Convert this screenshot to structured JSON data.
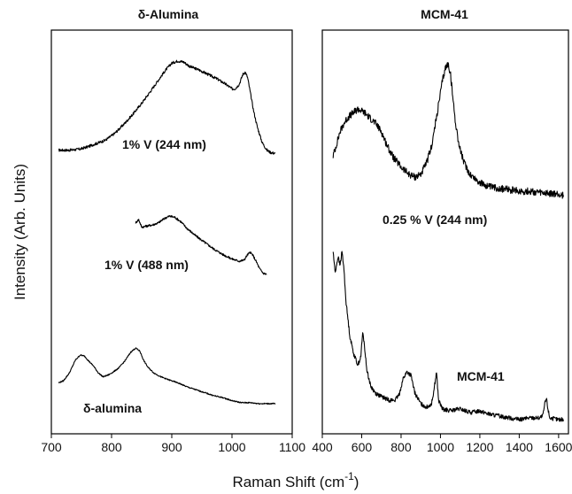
{
  "chart_data": {
    "type": "line",
    "ylabel": "Intensity (Arb. Units)",
    "xlabel_main": "Raman Shift (cm",
    "xlabel_sup": "-1",
    "xlabel_end": ")",
    "panels": [
      {
        "title": "δ-Alumina",
        "xlim": [
          700,
          1100
        ],
        "xticks": [
          700,
          800,
          900,
          1000,
          1100
        ],
        "series": [
          {
            "name": "1% V (244 nm)",
            "noise": 0.012,
            "points": [
              [
                712,
                0.13
              ],
              [
                730,
                0.13
              ],
              [
                748,
                0.14
              ],
              [
                760,
                0.16
              ],
              [
                775,
                0.19
              ],
              [
                790,
                0.22
              ],
              [
                805,
                0.28
              ],
              [
                820,
                0.36
              ],
              [
                835,
                0.45
              ],
              [
                850,
                0.55
              ],
              [
                865,
                0.66
              ],
              [
                878,
                0.76
              ],
              [
                890,
                0.85
              ],
              [
                900,
                0.91
              ],
              [
                910,
                0.93
              ],
              [
                920,
                0.92
              ],
              [
                930,
                0.88
              ],
              [
                945,
                0.85
              ],
              [
                960,
                0.81
              ],
              [
                975,
                0.77
              ],
              [
                990,
                0.72
              ],
              [
                1000,
                0.68
              ],
              [
                1005,
                0.68
              ],
              [
                1012,
                0.72
              ],
              [
                1018,
                0.81
              ],
              [
                1022,
                0.83
              ],
              [
                1026,
                0.78
              ],
              [
                1030,
                0.66
              ],
              [
                1036,
                0.48
              ],
              [
                1042,
                0.34
              ],
              [
                1050,
                0.2
              ],
              [
                1058,
                0.13
              ],
              [
                1064,
                0.11
              ],
              [
                1072,
                0.1
              ]
            ]
          },
          {
            "name": "1% V (488 nm)",
            "noise": 0.01,
            "points": [
              [
                840,
                0.6
              ],
              [
                845,
                0.63
              ],
              [
                850,
                0.56
              ],
              [
                858,
                0.57
              ],
              [
                868,
                0.58
              ],
              [
                878,
                0.6
              ],
              [
                888,
                0.64
              ],
              [
                896,
                0.66
              ],
              [
                905,
                0.65
              ],
              [
                915,
                0.61
              ],
              [
                925,
                0.55
              ],
              [
                940,
                0.48
              ],
              [
                955,
                0.42
              ],
              [
                970,
                0.36
              ],
              [
                985,
                0.31
              ],
              [
                1000,
                0.27
              ],
              [
                1012,
                0.25
              ],
              [
                1020,
                0.26
              ],
              [
                1026,
                0.31
              ],
              [
                1030,
                0.33
              ],
              [
                1034,
                0.31
              ],
              [
                1040,
                0.25
              ],
              [
                1046,
                0.18
              ],
              [
                1052,
                0.14
              ],
              [
                1058,
                0.13
              ]
            ]
          },
          {
            "name": "δ-alumina",
            "noise": 0.006,
            "points": [
              [
                712,
                0.3
              ],
              [
                720,
                0.32
              ],
              [
                730,
                0.4
              ],
              [
                740,
                0.53
              ],
              [
                748,
                0.58
              ],
              [
                755,
                0.57
              ],
              [
                762,
                0.52
              ],
              [
                770,
                0.47
              ],
              [
                778,
                0.4
              ],
              [
                786,
                0.36
              ],
              [
                795,
                0.38
              ],
              [
                803,
                0.41
              ],
              [
                812,
                0.45
              ],
              [
                822,
                0.52
              ],
              [
                832,
                0.61
              ],
              [
                840,
                0.65
              ],
              [
                847,
                0.62
              ],
              [
                853,
                0.53
              ],
              [
                860,
                0.46
              ],
              [
                870,
                0.4
              ],
              [
                882,
                0.36
              ],
              [
                895,
                0.33
              ],
              [
                910,
                0.3
              ],
              [
                925,
                0.26
              ],
              [
                940,
                0.23
              ],
              [
                955,
                0.2
              ],
              [
                970,
                0.17
              ],
              [
                985,
                0.15
              ],
              [
                1000,
                0.12
              ],
              [
                1015,
                0.1
              ],
              [
                1030,
                0.1
              ],
              [
                1045,
                0.09
              ],
              [
                1060,
                0.09
              ],
              [
                1072,
                0.09
              ]
            ]
          }
        ]
      },
      {
        "title": "MCM-41",
        "xlim": [
          400,
          1650
        ],
        "xticks": [
          400,
          600,
          800,
          1000,
          1200,
          1400,
          1600
        ],
        "series": [
          {
            "name": "0.25 % V (244 nm)",
            "noise": 0.025,
            "points": [
              [
                455,
                0.35
              ],
              [
                470,
                0.42
              ],
              [
                490,
                0.52
              ],
              [
                510,
                0.58
              ],
              [
                530,
                0.62
              ],
              [
                555,
                0.65
              ],
              [
                580,
                0.68
              ],
              [
                610,
                0.66
              ],
              [
                640,
                0.62
              ],
              [
                670,
                0.58
              ],
              [
                700,
                0.52
              ],
              [
                730,
                0.42
              ],
              [
                760,
                0.34
              ],
              [
                800,
                0.27
              ],
              [
                840,
                0.22
              ],
              [
                870,
                0.2
              ],
              [
                900,
                0.22
              ],
              [
                930,
                0.3
              ],
              [
                955,
                0.42
              ],
              [
                975,
                0.58
              ],
              [
                995,
                0.75
              ],
              [
                1010,
                0.88
              ],
              [
                1025,
                0.97
              ],
              [
                1038,
                1.0
              ],
              [
                1050,
                0.94
              ],
              [
                1060,
                0.8
              ],
              [
                1075,
                0.6
              ],
              [
                1095,
                0.42
              ],
              [
                1120,
                0.3
              ],
              [
                1150,
                0.22
              ],
              [
                1200,
                0.16
              ],
              [
                1250,
                0.13
              ],
              [
                1300,
                0.12
              ],
              [
                1350,
                0.11
              ],
              [
                1400,
                0.1
              ],
              [
                1450,
                0.1
              ],
              [
                1500,
                0.09
              ],
              [
                1550,
                0.08
              ],
              [
                1600,
                0.08
              ],
              [
                1625,
                0.07
              ]
            ]
          },
          {
            "name": "MCM-41",
            "noise": 0.012,
            "points": [
              [
                455,
                0.98
              ],
              [
                465,
                0.86
              ],
              [
                480,
                0.95
              ],
              [
                490,
                0.9
              ],
              [
                500,
                0.98
              ],
              [
                510,
                0.88
              ],
              [
                520,
                0.7
              ],
              [
                540,
                0.5
              ],
              [
                560,
                0.4
              ],
              [
                580,
                0.34
              ],
              [
                595,
                0.38
              ],
              [
                605,
                0.52
              ],
              [
                612,
                0.47
              ],
              [
                625,
                0.32
              ],
              [
                645,
                0.22
              ],
              [
                670,
                0.18
              ],
              [
                700,
                0.16
              ],
              [
                740,
                0.14
              ],
              [
                770,
                0.14
              ],
              [
                790,
                0.17
              ],
              [
                810,
                0.26
              ],
              [
                830,
                0.3
              ],
              [
                850,
                0.28
              ],
              [
                870,
                0.18
              ],
              [
                900,
                0.12
              ],
              [
                930,
                0.1
              ],
              [
                955,
                0.12
              ],
              [
                970,
                0.22
              ],
              [
                980,
                0.3
              ],
              [
                990,
                0.14
              ],
              [
                1010,
                0.09
              ],
              [
                1050,
                0.08
              ],
              [
                1100,
                0.09
              ],
              [
                1150,
                0.07
              ],
              [
                1200,
                0.08
              ],
              [
                1250,
                0.06
              ],
              [
                1300,
                0.05
              ],
              [
                1350,
                0.04
              ],
              [
                1400,
                0.03
              ],
              [
                1450,
                0.04
              ],
              [
                1500,
                0.04
              ],
              [
                1520,
                0.05
              ],
              [
                1530,
                0.12
              ],
              [
                1538,
                0.15
              ],
              [
                1546,
                0.09
              ],
              [
                1555,
                0.04
              ],
              [
                1600,
                0.03
              ],
              [
                1625,
                0.03
              ]
            ]
          }
        ]
      }
    ]
  }
}
